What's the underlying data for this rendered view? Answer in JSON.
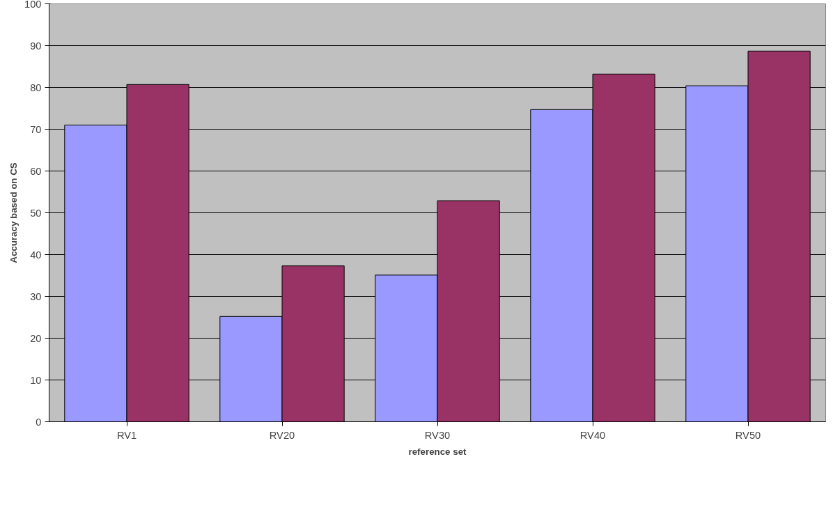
{
  "chart_data": {
    "type": "bar",
    "xlabel": "reference set",
    "ylabel": "Accuracy based on CS",
    "categories": [
      "RV1",
      "RV20",
      "RV30",
      "RV40",
      "RV50"
    ],
    "series": [
      {
        "color": "#9999ff",
        "values": [
          71.0,
          25.2,
          35.1,
          74.7,
          80.4
        ]
      },
      {
        "color": "#993366",
        "values": [
          80.7,
          37.3,
          52.9,
          83.2,
          88.7
        ]
      }
    ],
    "ylim": [
      0,
      100
    ],
    "yticks": [
      0,
      10,
      20,
      30,
      40,
      50,
      60,
      70,
      80,
      90,
      100
    ],
    "grid": "y"
  }
}
